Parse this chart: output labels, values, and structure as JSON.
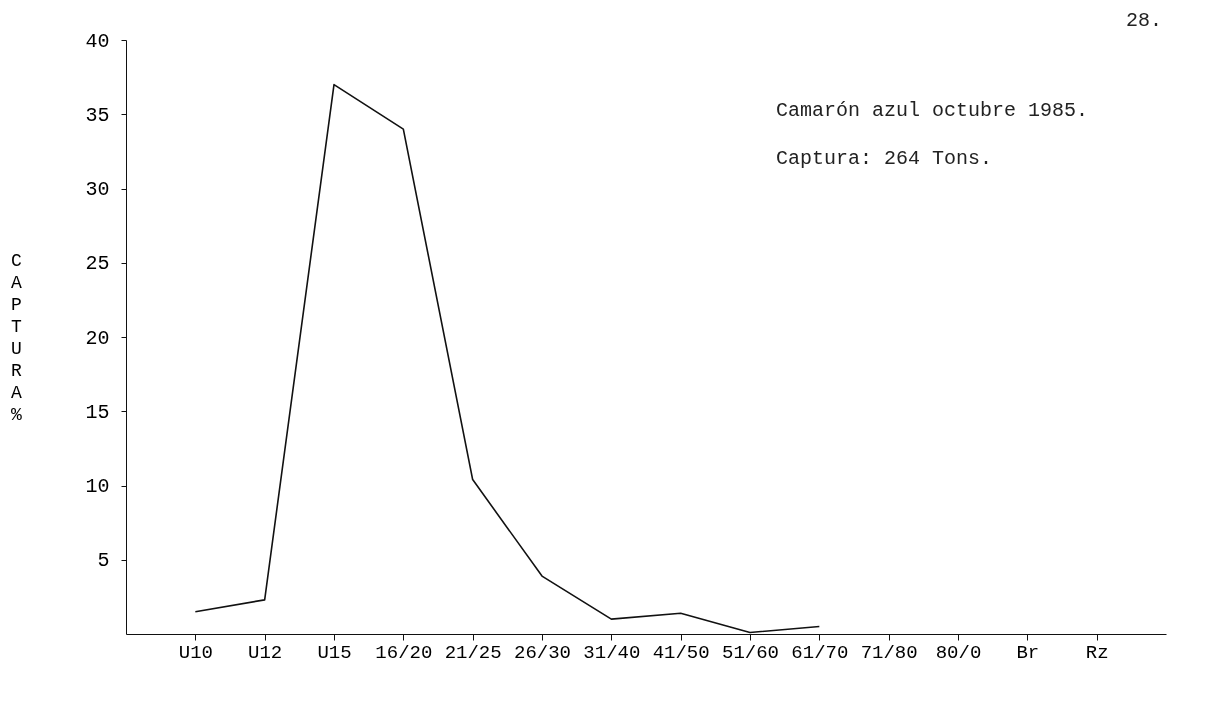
{
  "chart_data": {
    "type": "line",
    "categories": [
      "U10",
      "U12",
      "U15",
      "16/20",
      "21/25",
      "26/30",
      "31/40",
      "41/50",
      "51/60",
      "61/70",
      "71/80",
      "80/0",
      "Br",
      "Rz"
    ],
    "values": [
      1.5,
      2.3,
      37,
      34,
      10.4,
      3.9,
      1.0,
      1.4,
      0.1,
      0.5,
      null,
      null,
      null,
      null
    ],
    "color": "#111111",
    "ylabel": "CAPTURA %",
    "ylim": [
      0,
      40
    ],
    "yticks": [
      5,
      10,
      15,
      20,
      25,
      30,
      35,
      40
    ],
    "grid": false,
    "marker": "none",
    "line_style": "solid",
    "annotations": [
      "Camarón azul octubre 1985.",
      "Captura: 264 Tons.",
      "28."
    ]
  }
}
